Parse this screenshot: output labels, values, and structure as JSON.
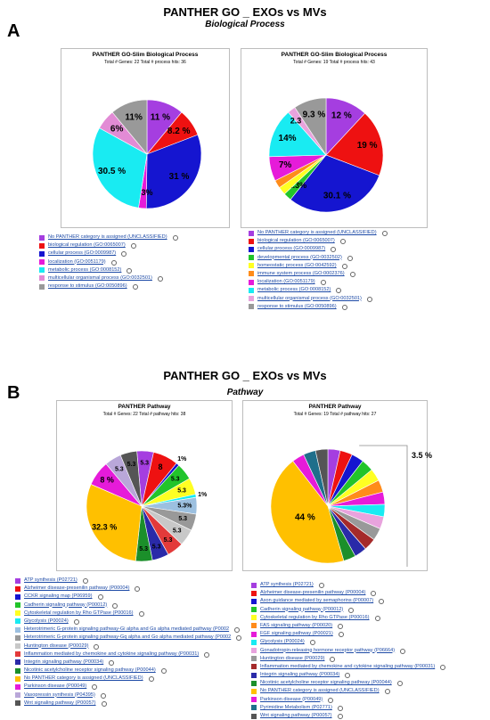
{
  "panelA": {
    "letter": "A",
    "title": "PANTHER GO _ EXOs vs MVs",
    "subtitle": "Biological Process"
  },
  "panelB": {
    "letter": "B",
    "title": "PANTHER GO _ EXOs vs MVs",
    "subtitle": "Pathway"
  },
  "colors": {
    "purple": "#a53ee0",
    "red": "#ee1111",
    "blue": "#1515d0",
    "magenta": "#e61bd9",
    "cyan": "#19ebf2",
    "pink": "#e28bd5",
    "gray": "#999999",
    "green": "#22c42a",
    "yellow": "#ffff22",
    "orange": "#ff8c1a",
    "lightpink": "#e8a3dd",
    "darkgray": "#777777"
  },
  "chart_data": [
    {
      "type": "pie",
      "title": "PANTHER GO-Slim Biological Process",
      "subtitle": "Total # Genes: 22   Total # process hits: 36",
      "slices": [
        {
          "label": "No PANTHER category is assigned (UNCLASSIFIED)",
          "value": 11,
          "color": "#a53ee0",
          "text": "11 %"
        },
        {
          "label": "biological regulation (GO:0065007)",
          "value": 8.2,
          "color": "#ee1111",
          "text": "8.2 %"
        },
        {
          "label": "cellular process (GO:0009987)",
          "value": 31,
          "color": "#1515d0",
          "text": "31 %"
        },
        {
          "label": "localization (GO:0051179)",
          "value": 2.3,
          "color": "#e61bd9",
          "text": "2.3%"
        },
        {
          "label": "metabolic process (GO:0008152)",
          "value": 30.5,
          "color": "#19ebf2",
          "text": "30.5 %"
        },
        {
          "label": "multicellular organismal process (GO:0032501)",
          "value": 6,
          "color": "#e28bd5",
          "text": "6%"
        },
        {
          "label": "response to stimulus (GO:0050896)",
          "value": 11,
          "color": "#999999",
          "text": "11%"
        }
      ]
    },
    {
      "type": "pie",
      "title": "PANTHER GO-Slim Biological Process",
      "subtitle": "Total # Genes: 19   Total # process hits: 43",
      "slices": [
        {
          "label": "No PANTHER category is assigned (UNCLASSIFIED)",
          "value": 12,
          "color": "#a53ee0",
          "text": "12 %"
        },
        {
          "label": "biological regulation (GO:0065007)",
          "value": 19,
          "color": "#ee1111",
          "text": "19 %"
        },
        {
          "label": "cellular process (GO:0009987)",
          "value": 30.1,
          "color": "#1515d0",
          "text": "30.1 %"
        },
        {
          "label": "developmental process (GO:0032502)",
          "value": 2.3,
          "color": "#22c42a",
          "text": "2.3%"
        },
        {
          "label": "homeostatic process (GO:0042592)",
          "value": 2.3,
          "color": "#ffff22",
          "text": ""
        },
        {
          "label": "immune system process (GO:0002376)",
          "value": 2.3,
          "color": "#ff8c1a",
          "text": ""
        },
        {
          "label": "localization (GO:0051179)",
          "value": 7,
          "color": "#e61bd9",
          "text": "7%"
        },
        {
          "label": "metabolic process (GO:0008152)",
          "value": 14,
          "color": "#19ebf2",
          "text": "14%"
        },
        {
          "label": "multicellular organismal process (GO:0032501)",
          "value": 2.3,
          "color": "#e8a3dd",
          "text": "2.3 %"
        },
        {
          "label": "response to stimulus (GO:0050896)",
          "value": 9.3,
          "color": "#999999",
          "text": "9.3 %"
        }
      ]
    },
    {
      "type": "pie",
      "title": "PANTHER Pathway",
      "subtitle": "Total # Genes: 22   Total # pathway hits: 38",
      "slices": [
        {
          "label": "ATP synthesis (P02721)",
          "value": 5.3,
          "color": "#a53ee0",
          "text": "5.3"
        },
        {
          "label": "Alzheimer disease-presenilin pathway (P00004)",
          "value": 8,
          "color": "#ee1111",
          "text": "8"
        },
        {
          "label": "CCKR signaling map (P06959)",
          "value": 1,
          "color": "#1515d0",
          "text": "1%"
        },
        {
          "label": "Cadherin signaling pathway (P00012)",
          "value": 5.3,
          "color": "#22c42a",
          "text": "5.3"
        },
        {
          "label": "Cytoskeletal regulation by Rho GTPase (P00016)",
          "value": 5.3,
          "color": "#ffff22",
          "text": "5.3"
        },
        {
          "label": "Glycolysis (P00024)",
          "value": 1,
          "color": "#19ebf2",
          "text": "1%"
        },
        {
          "label": "Heterotrimeric G-protein signaling pathway-Gi alpha and Gs alpha mediated pathway (P0002",
          "value": 5.3,
          "color": "#9cc0e0",
          "text": "5.3%"
        },
        {
          "label": "Heterotrimeric G-protein signaling pathway-Gq alpha and Go alpha mediated pathway (P0002",
          "value": 5.3,
          "color": "#999999",
          "text": "5.3"
        },
        {
          "label": "Huntington disease (P00029)",
          "value": 5.3,
          "color": "#c8c8c8",
          "text": "5.3"
        },
        {
          "label": "Inflammation mediated by chemokine and cytokine signaling pathway (P00031)",
          "value": 5.3,
          "color": "#e33a3a",
          "text": "5.3"
        },
        {
          "label": "Integrin signaling pathway (P00034)",
          "value": 5.3,
          "color": "#2a2aa8",
          "text": "5.3"
        },
        {
          "label": "Nicotinic acetylcholine receptor signaling pathway (P00044)",
          "value": 5.3,
          "color": "#1b8f2a",
          "text": "5.3"
        },
        {
          "label": "No PANTHER category is assigned (UNCLASSIFIED)",
          "value": 32.3,
          "color": "#ffc000",
          "text": "32.3 %"
        },
        {
          "label": "Parkinson disease (P00049)",
          "value": 8,
          "color": "#e61bd9",
          "text": "8 %"
        },
        {
          "label": "Vasopressin synthesis (P04395)",
          "value": 5.3,
          "color": "#b9a7d9",
          "text": "5.3"
        },
        {
          "label": "Wnt signaling pathway (P00057)",
          "value": 5.3,
          "color": "#555555",
          "text": "5.3"
        }
      ]
    },
    {
      "type": "pie",
      "title": "PANTHER Pathway",
      "subtitle": "Total # Genes: 19   Total # pathway hits: 27",
      "slices": [
        {
          "label": "ATP synthesis (P02721)",
          "value": 3.5,
          "color": "#a53ee0",
          "text": ""
        },
        {
          "label": "Alzheimer disease-presenilin pathway (P00004)",
          "value": 3.5,
          "color": "#ee1111",
          "text": ""
        },
        {
          "label": "Axon guidance mediated by semaphorins (P00007)",
          "value": 3.5,
          "color": "#1515d0",
          "text": ""
        },
        {
          "label": "Cadherin signaling pathway (P00012)",
          "value": 3.5,
          "color": "#22c42a",
          "text": ""
        },
        {
          "label": "Cytoskeletal regulation by Rho GTPase (P00016)",
          "value": 3.5,
          "color": "#ffff22",
          "text": ""
        },
        {
          "label": "FAS signaling pathway (P00020)",
          "value": 3.5,
          "color": "#ff8c1a",
          "text": ""
        },
        {
          "label": "FGF signaling pathway (P00021)",
          "value": 3.5,
          "color": "#e61bd9",
          "text": ""
        },
        {
          "label": "Glycolysis (P00024)",
          "value": 3.5,
          "color": "#19ebf2",
          "text": ""
        },
        {
          "label": "Gonadotropin-releasing hormone receptor pathway (P06664)",
          "value": 3.5,
          "color": "#e8a3dd",
          "text": ""
        },
        {
          "label": "Huntington disease (P00029)",
          "value": 3.5,
          "color": "#999999",
          "text": ""
        },
        {
          "label": "Inflammation mediated by chemokine and cytokine signaling pathway (P00031)",
          "value": 3.5,
          "color": "#a52a2a",
          "text": ""
        },
        {
          "label": "Integrin signaling pathway (P00034)",
          "value": 3.5,
          "color": "#2a2aa8",
          "text": ""
        },
        {
          "label": "Nicotinic acetylcholine receptor signaling pathway (P00044)",
          "value": 3.5,
          "color": "#1b8f2a",
          "text": ""
        },
        {
          "label": "No PANTHER category is assigned (UNCLASSIFIED)",
          "value": 44,
          "color": "#ffc000",
          "text": "44 %"
        },
        {
          "label": "Parkinson disease (P00049)",
          "value": 3.5,
          "color": "#e61bd9",
          "text": ""
        },
        {
          "label": "Pyrimidine Metabolism (P02771)",
          "value": 3.5,
          "color": "#1f6f8b",
          "text": ""
        },
        {
          "label": "Wnt signaling pathway (P00057)",
          "value": 3.5,
          "color": "#555555",
          "text": ""
        }
      ],
      "annotation": "3.5 %"
    }
  ]
}
